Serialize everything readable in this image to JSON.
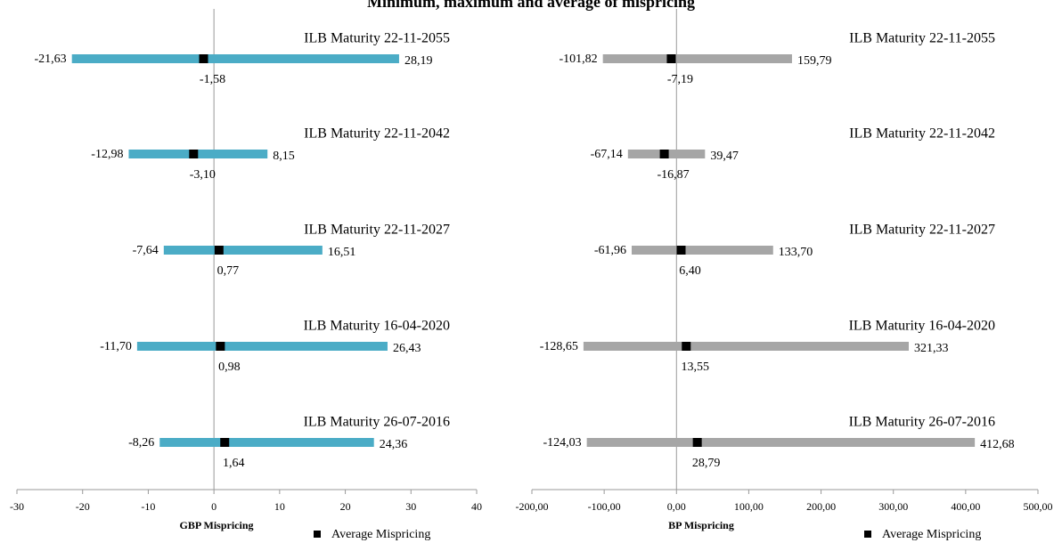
{
  "title": "Minimum, maximum and average of mispricing",
  "chart_data": [
    {
      "type": "range",
      "x_label": "GBP Mispricing",
      "bar_color": "#4bacc6",
      "categories": [
        "ILB Maturity 22-11-2055",
        "ILB Maturity 22-11-2042",
        "ILB Maturity 22-11-2027",
        "ILB Maturity 16-04-2020",
        "ILB Maturity 26-07-2016"
      ],
      "min": {
        "values": [
          -21.63,
          -12.98,
          -7.64,
          -11.7,
          -8.26
        ],
        "value_labels": [
          "-21,63",
          "-12,98",
          "-7,64",
          "-11,70",
          "-8,26"
        ]
      },
      "max": {
        "values": [
          28.19,
          8.15,
          16.51,
          26.43,
          24.36
        ],
        "value_labels": [
          "28,19",
          "8,15",
          "16,51",
          "26,43",
          "24,36"
        ]
      },
      "avg": {
        "name": "Average Mispricing",
        "color": "#000000",
        "values": [
          -1.58,
          -3.1,
          0.77,
          0.98,
          1.64
        ],
        "value_labels": [
          "-1,58",
          "-3,10",
          "0,77",
          "0,98",
          "1,64"
        ]
      },
      "xlim": [
        -30,
        40
      ],
      "xticks": [
        -30,
        -20,
        -10,
        0,
        10,
        20,
        30,
        40
      ]
    },
    {
      "type": "range",
      "x_label": "BP Mispricing",
      "bar_color": "#a6a6a6",
      "categories": [
        "ILB Maturity 22-11-2055",
        "ILB Maturity 22-11-2042",
        "ILB Maturity 22-11-2027",
        "ILB Maturity 16-04-2020",
        "ILB Maturity 26-07-2016"
      ],
      "min": {
        "values": [
          -101.82,
          -67.14,
          -61.96,
          -128.65,
          -124.03
        ],
        "value_labels": [
          "-101,82",
          "-67,14",
          "-61,96",
          "-128,65",
          "-124,03"
        ]
      },
      "max": {
        "values": [
          159.79,
          39.47,
          133.7,
          321.33,
          412.68
        ],
        "value_labels": [
          "159,79",
          "39,47",
          "133,70",
          "321,33",
          "412,68"
        ]
      },
      "avg": {
        "name": "Average Mispricing",
        "color": "#000000",
        "values": [
          -7.19,
          -16.87,
          6.4,
          13.55,
          28.79
        ],
        "value_labels": [
          "-7,19",
          "-16,87",
          "6,40",
          "13,55",
          "28,79"
        ]
      },
      "xlim": [
        -200,
        500
      ],
      "xticks": [
        {
          "value": -200,
          "label": "-200,00"
        },
        {
          "value": -100,
          "label": "-100,00"
        },
        {
          "value": 0,
          "label": "0,00"
        },
        {
          "value": 100,
          "label": "100,00"
        },
        {
          "value": 200,
          "label": "200,00"
        },
        {
          "value": 300,
          "label": "300,00"
        },
        {
          "value": 400,
          "label": "400,00"
        },
        {
          "value": 500,
          "label": "500,00"
        }
      ]
    }
  ]
}
